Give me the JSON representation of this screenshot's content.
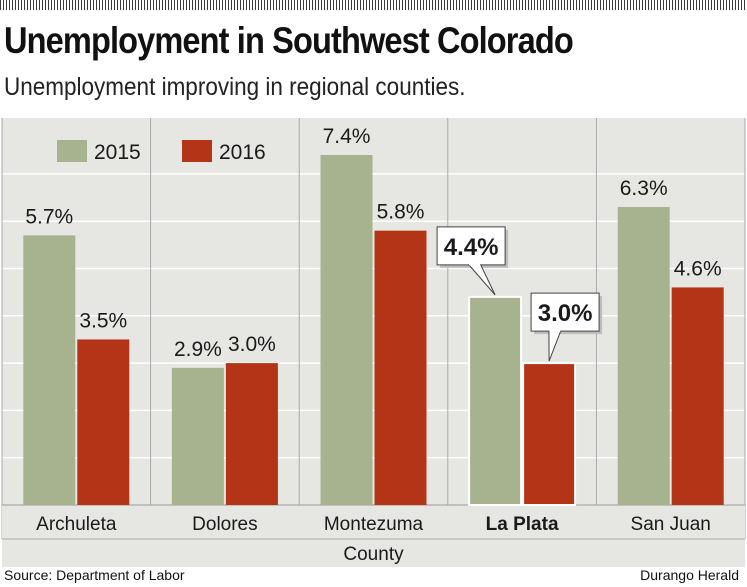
{
  "header": {
    "title": "Unemployment in Southwest Colorado",
    "subtitle": "Unemployment improving in regional counties."
  },
  "footer": {
    "source": "Source: Department of Labor",
    "credit": "Durango Herald"
  },
  "colors": {
    "series_2015": "#a7b38e",
    "series_2016": "#b43418",
    "panel_background": "#e6e7e2",
    "gridline": "#ffffff",
    "divider": "#a8a8a8"
  },
  "chart_data": {
    "type": "bar",
    "title": "Unemployment in Southwest Colorado",
    "subtitle": "Unemployment improving in regional counties.",
    "xlabel": "County",
    "ylabel": "",
    "categories": [
      "Archuleta",
      "Dolores",
      "Montezuma",
      "La Plata",
      "San Juan"
    ],
    "highlight_category": "La Plata",
    "series": [
      {
        "name": "2015",
        "values": [
          5.7,
          2.9,
          7.4,
          4.4,
          6.3
        ],
        "labels": [
          "5.7%",
          "2.9%",
          "7.4%",
          "4.4%",
          "6.3%"
        ]
      },
      {
        "name": "2016",
        "values": [
          3.5,
          3.0,
          5.8,
          3.0,
          4.6
        ],
        "labels": [
          "3.5%",
          "3.0%",
          "5.8%",
          "3.0%",
          "4.6%"
        ]
      }
    ],
    "ylim": [
      0,
      8
    ],
    "grid": true,
    "legend_position": "top-left"
  }
}
